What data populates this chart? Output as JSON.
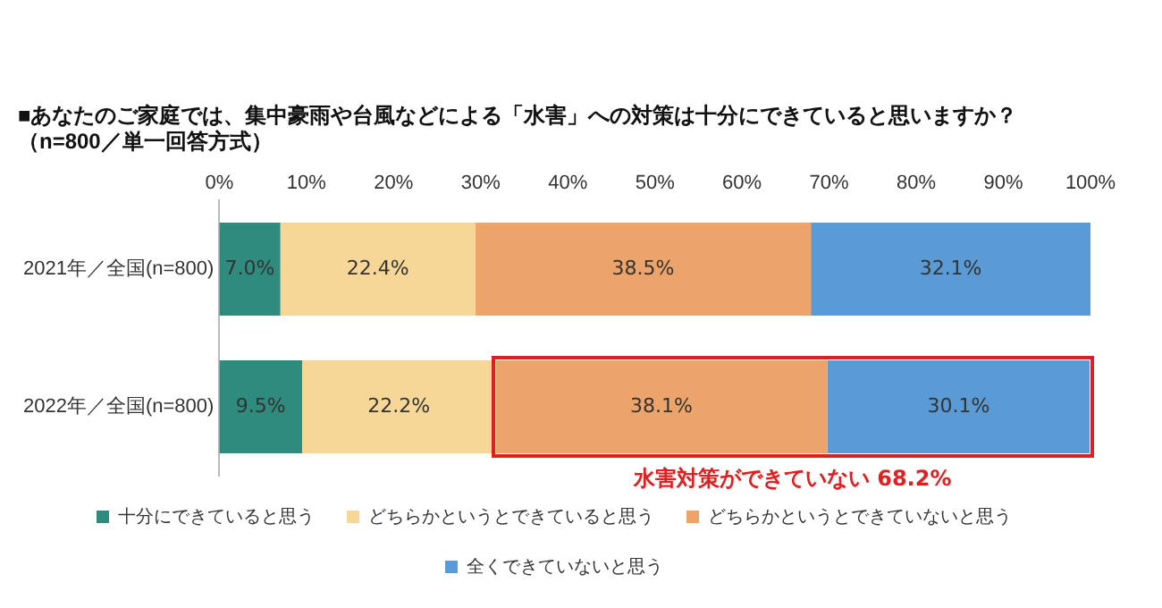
{
  "chart_data": {
    "type": "bar",
    "orientation": "horizontal",
    "stacked": true,
    "title": "■あなたのご家庭では、集中豪雨や台風などによる「水害」への対策は十分にできていると思いますか？",
    "subtitle": "（n=800／単一回答方式）",
    "categories": [
      "2021年／全国(n=800)",
      "2022年／全国(n=800)"
    ],
    "series": [
      {
        "name": "十分にできていると思う",
        "color": "#2e8b7e",
        "values": [
          7.0,
          9.5
        ],
        "value_labels": [
          "7.0%",
          "9.5%"
        ]
      },
      {
        "name": "どちらかというとできていると思う",
        "color": "#f6d798",
        "values": [
          22.4,
          22.2
        ],
        "value_labels": [
          "22.4%",
          "22.2%"
        ]
      },
      {
        "name": "どちらかというとできていないと思う",
        "color": "#eca46a",
        "values": [
          38.5,
          38.1
        ],
        "value_labels": [
          "38.5%",
          "38.1%"
        ]
      },
      {
        "name": "全くできていないと思う",
        "color": "#5b9bd5",
        "values": [
          32.1,
          30.1
        ],
        "value_labels": [
          "32.1%",
          "30.1%"
        ]
      }
    ],
    "xlim": [
      0,
      100
    ],
    "xticks": [
      {
        "value": 0,
        "label": "0%"
      },
      {
        "value": 10,
        "label": "10%"
      },
      {
        "value": 20,
        "label": "20%"
      },
      {
        "value": 30,
        "label": "30%"
      },
      {
        "value": 40,
        "label": "40%"
      },
      {
        "value": 50,
        "label": "50%"
      },
      {
        "value": 60,
        "label": "60%"
      },
      {
        "value": 70,
        "label": "70%"
      },
      {
        "value": 80,
        "label": "80%"
      },
      {
        "value": 90,
        "label": "90%"
      },
      {
        "value": 100,
        "label": "100%"
      }
    ],
    "grid": false,
    "legend": "bottom",
    "annotations": [
      "水害対策ができていない 68.2%"
    ]
  }
}
